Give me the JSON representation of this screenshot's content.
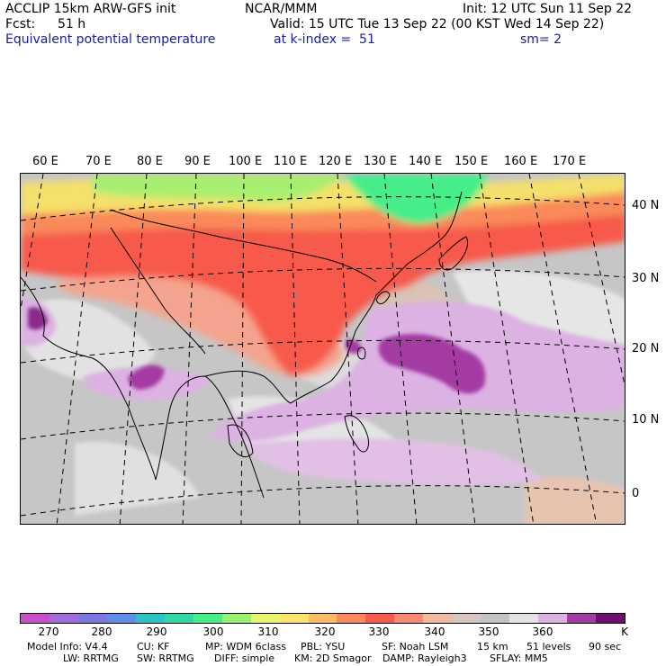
{
  "header": {
    "model": "ACCLIP 15km ARW-GFS init",
    "org": "NCAR/MMM",
    "init": "Init: 12 UTC Sun 11 Sep 22",
    "fcst_label": "Fcst:",
    "fcst_value": "51 h",
    "valid": "Valid: 15 UTC Tue 13 Sep 22 (00 KST Wed 14 Sep 22)",
    "field": "Equivalent potential temperature",
    "level": "at k-index =  51",
    "smoothing": "sm= 2"
  },
  "map": {
    "lon_labels": [
      "60 E",
      "70 E",
      "80 E",
      "90 E",
      "100 E",
      "110 E",
      "120 E",
      "130 E",
      "140 E",
      "150 E",
      "160 E",
      "170 E"
    ],
    "lat_labels": [
      "40 N",
      "30 N",
      "20 N",
      "10 N",
      "0"
    ]
  },
  "colorbar": {
    "colors": [
      "#c64fc9",
      "#9f6cd9",
      "#7a78e0",
      "#5f8ee8",
      "#2bc4c4",
      "#2fd9a5",
      "#44ee88",
      "#9cf070",
      "#e8f46a",
      "#fde36b",
      "#fdbb62",
      "#fa8a5a",
      "#f75a4c",
      "#f88a74",
      "#f4baa0",
      "#d6c6bd",
      "#c4c4c4",
      "#e4e4e4",
      "#dcb2e2",
      "#a43aa3",
      "#6e0e6e"
    ],
    "tick_labels": [
      "270",
      "280",
      "290",
      "300",
      "310",
      "320",
      "330",
      "340",
      "350",
      "360"
    ],
    "unit": "K"
  },
  "footer": {
    "line1": [
      "Model Info: V4.4",
      "CU: KF",
      "MP: WDM 6class",
      "PBL: YSU",
      "SF: Noah LSM",
      "15 km",
      "51 levels",
      "90 sec"
    ],
    "line2": [
      "LW: RRTMG",
      "SW: RRTMG",
      "DIFF: simple",
      "KM: 2D Smagor",
      "DAMP: Rayleigh3",
      "SFLAY: MM5"
    ]
  }
}
